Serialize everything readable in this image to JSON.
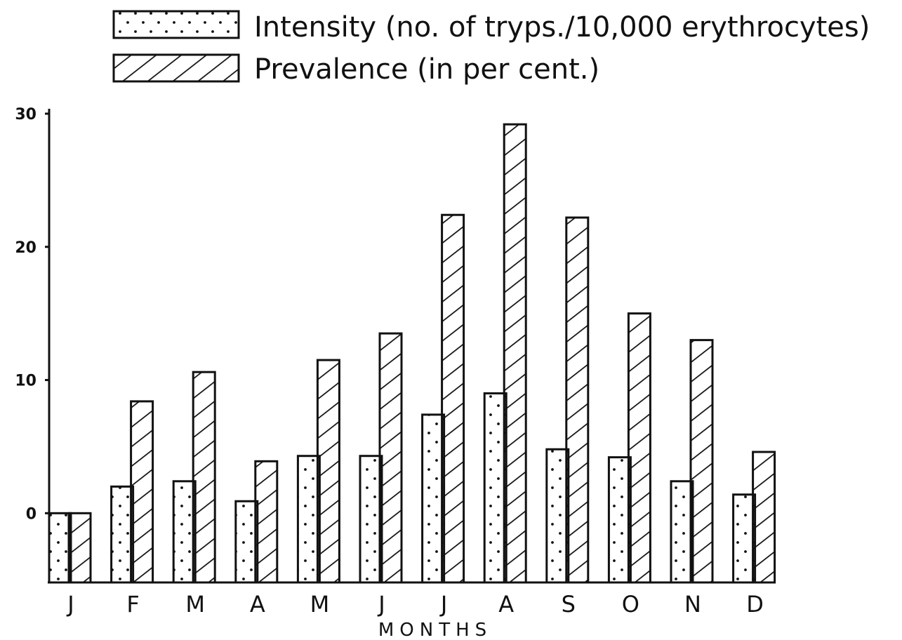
{
  "chart_data": {
    "type": "bar",
    "title": "",
    "xlabel": "MONTHS",
    "ylabel": "",
    "categories": [
      "J",
      "F",
      "M",
      "A",
      "M",
      "J",
      "J",
      "A",
      "S",
      "O",
      "N",
      "D"
    ],
    "y_ticks": [
      0,
      10,
      20,
      30
    ],
    "ylim": [
      -5.2,
      30
    ],
    "grid": false,
    "legend_position": "top",
    "series": [
      {
        "name": "Intensity (no. of tryps./10,000 erythrocytes)",
        "pattern": "dotted",
        "values": [
          0,
          2,
          2.4,
          0.9,
          4.3,
          4.3,
          7.4,
          9,
          4.8,
          4.2,
          2.4,
          1.4
        ]
      },
      {
        "name": "Prevalence (in per cent.)",
        "pattern": "hatched",
        "values": [
          0,
          8.4,
          10.6,
          3.9,
          11.5,
          13.5,
          22.4,
          29.2,
          22.2,
          15,
          13,
          4.6
        ]
      }
    ]
  },
  "colors": {
    "ink": "#111111",
    "background": "#ffffff"
  }
}
